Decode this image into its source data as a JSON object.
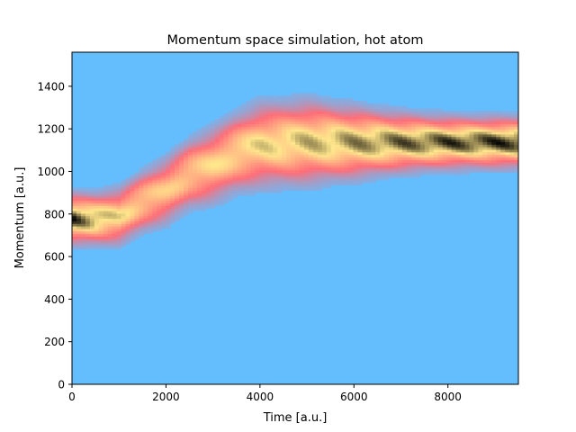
{
  "chart_data": {
    "type": "heatmap",
    "title": "Momentum space simulation, hot atom",
    "xlabel": "Time [a.u.]",
    "ylabel": "Momentum [a.u.]",
    "xlim": [
      0,
      9500
    ],
    "ylim": [
      0,
      1560
    ],
    "xticks": [
      0,
      2000,
      4000,
      6000,
      8000
    ],
    "yticks": [
      0,
      200,
      400,
      600,
      800,
      1000,
      1200,
      1400
    ],
    "grid": false,
    "legend": "none",
    "colors": {
      "background": "#64befe",
      "edge": "#ff6e78",
      "mid": "#ffe68c",
      "peak": "#000000"
    },
    "ridge": [
      {
        "time": 0,
        "momentum": 780,
        "width": 60,
        "intensity": 1.0
      },
      {
        "time": 500,
        "momentum": 778,
        "width": 62,
        "intensity": 0.85
      },
      {
        "time": 1000,
        "momentum": 790,
        "width": 68,
        "intensity": 0.7
      },
      {
        "time": 1500,
        "momentum": 860,
        "width": 75,
        "intensity": 0.62
      },
      {
        "time": 2000,
        "momentum": 910,
        "width": 80,
        "intensity": 0.6
      },
      {
        "time": 2500,
        "momentum": 990,
        "width": 85,
        "intensity": 0.62
      },
      {
        "time": 3000,
        "momentum": 1030,
        "width": 90,
        "intensity": 0.65
      },
      {
        "time": 3500,
        "momentum": 1090,
        "width": 95,
        "intensity": 0.68
      },
      {
        "time": 4000,
        "momentum": 1125,
        "width": 100,
        "intensity": 0.72
      },
      {
        "time": 5000,
        "momentum": 1140,
        "width": 100,
        "intensity": 0.78
      },
      {
        "time": 6000,
        "momentum": 1138,
        "width": 85,
        "intensity": 0.85
      },
      {
        "time": 7000,
        "momentum": 1138,
        "width": 70,
        "intensity": 0.92
      },
      {
        "time": 8000,
        "momentum": 1138,
        "width": 62,
        "intensity": 0.97
      },
      {
        "time": 9500,
        "momentum": 1138,
        "width": 60,
        "intensity": 1.0
      }
    ]
  }
}
